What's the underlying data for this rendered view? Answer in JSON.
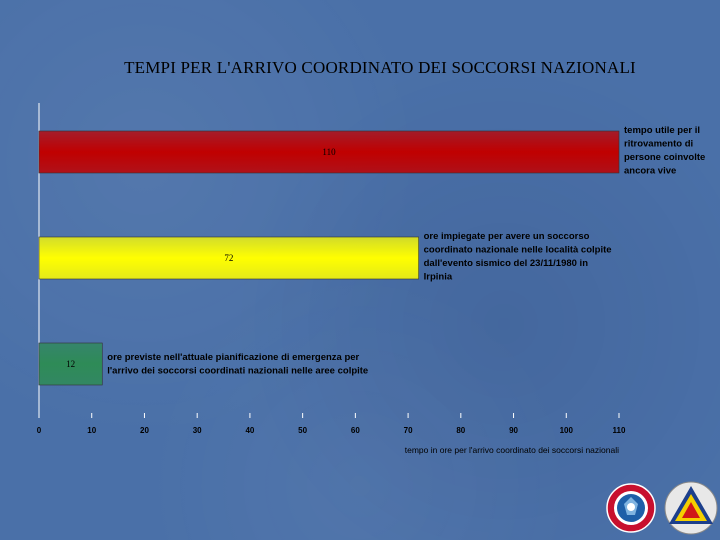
{
  "title": "TEMPI PER L'ARRIVO COORDINATO DEI SOCCORSI NAZIONALI",
  "colors": {
    "background": "#4a70a8",
    "bar_red": "#c00000",
    "bar_yellow": "#ffff00",
    "bar_green": "#2e8b57"
  },
  "chart_data": {
    "type": "bar",
    "orientation": "horizontal",
    "title": "TEMPI PER L'ARRIVO COORDINATO DEI SOCCORSI NAZIONALI",
    "xlabel": "tempo in ore per l'arrivo coordinato dei soccorsi nazionali",
    "ylabel": "",
    "xlim": [
      0,
      110
    ],
    "xticks": [
      0,
      10,
      20,
      30,
      40,
      50,
      60,
      70,
      80,
      90,
      100,
      110
    ],
    "grid": false,
    "bars": [
      {
        "value": 110,
        "value_label": "110",
        "color": "#c00000",
        "label_lines": [
          "tempo utile per il",
          "ritrovamento di",
          "persone coinvolte",
          "ancora vive"
        ]
      },
      {
        "value": 72,
        "value_label": "72",
        "color": "#ffff00",
        "label_lines": [
          "ore impiegate per avere un soccorso",
          "coordinato nazionale nelle località colpite",
          "dall'evento sismico del 23/11/1980 in",
          "Irpinia"
        ]
      },
      {
        "value": 12,
        "value_label": "12",
        "color": "#2e8b57",
        "label_lines": [
          "ore previste nell'attuale pianificazione di emergenza per",
          "l'arrivo dei soccorsi coordinati nazionali nelle aree colpite"
        ]
      }
    ]
  },
  "logos": [
    {
      "name": "emblem-logo",
      "shape": "circular red-blue emblem"
    },
    {
      "name": "protezione-civile-logo",
      "shape": "triangle emblem"
    }
  ]
}
